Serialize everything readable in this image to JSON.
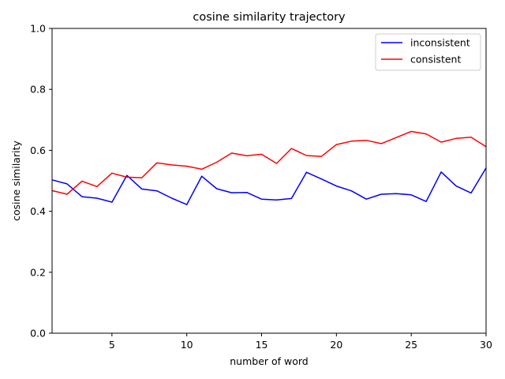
{
  "chart_data": {
    "type": "line",
    "title": "cosine similarity trajectory",
    "xlabel": "number of word",
    "ylabel": "cosine similarity",
    "xlim": [
      1,
      30
    ],
    "ylim": [
      0,
      1
    ],
    "x_ticks": [
      5,
      10,
      15,
      20,
      25,
      30
    ],
    "y_ticks": [
      0.0,
      0.2,
      0.4,
      0.6,
      0.8,
      1.0
    ],
    "x_tick_labels": [
      "5",
      "10",
      "15",
      "20",
      "25",
      "30"
    ],
    "y_tick_labels": [
      "0.0",
      "0.2",
      "0.4",
      "0.6",
      "0.8",
      "1.0"
    ],
    "grid": false,
    "legend_position": "top-right",
    "x": [
      1,
      2,
      3,
      4,
      5,
      6,
      7,
      8,
      9,
      10,
      11,
      12,
      13,
      14,
      15,
      16,
      17,
      18,
      19,
      20,
      21,
      22,
      23,
      24,
      25,
      26,
      27,
      28,
      29,
      30
    ],
    "series": [
      {
        "name": "inconsistent",
        "color": "#0000ff",
        "values": [
          0.503,
          0.49,
          0.448,
          0.443,
          0.43,
          0.518,
          0.473,
          0.467,
          0.443,
          0.422,
          0.515,
          0.474,
          0.461,
          0.462,
          0.44,
          0.437,
          0.442,
          0.528,
          0.506,
          0.483,
          0.467,
          0.44,
          0.456,
          0.458,
          0.454,
          0.432,
          0.529,
          0.483,
          0.46,
          0.542
        ]
      },
      {
        "name": "consistent",
        "color": "#ff0000",
        "values": [
          0.468,
          0.456,
          0.499,
          0.481,
          0.525,
          0.512,
          0.51,
          0.559,
          0.552,
          0.548,
          0.538,
          0.561,
          0.591,
          0.582,
          0.587,
          0.557,
          0.606,
          0.583,
          0.58,
          0.619,
          0.63,
          0.633,
          0.622,
          0.642,
          0.662,
          0.654,
          0.627,
          0.639,
          0.643,
          0.612
        ]
      }
    ]
  }
}
